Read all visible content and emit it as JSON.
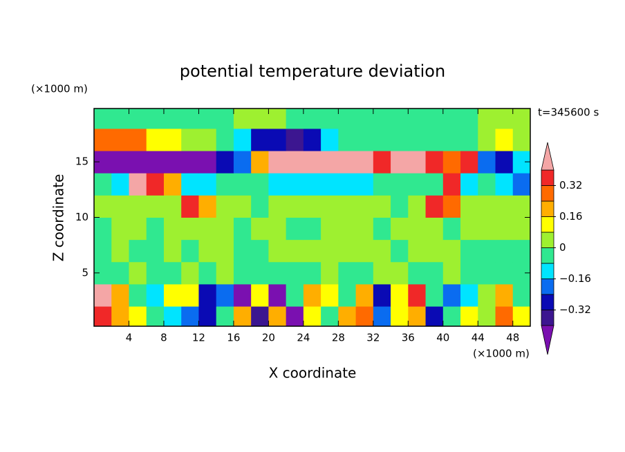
{
  "chart_data": {
    "type": "contour",
    "title": "potential temperature deviation",
    "x_label": "X coordinate",
    "y_label": "Z coordinate",
    "x_unit": "(×1000 m)",
    "y_unit": "(×1000 m)",
    "time_label": "t=345600 s",
    "xlim": [
      0,
      50
    ],
    "ylim": [
      0.2,
      19.8
    ],
    "xticks": [
      4,
      8,
      12,
      16,
      20,
      24,
      28,
      32,
      36,
      40,
      44,
      48
    ],
    "yticks": [
      5,
      10,
      15
    ],
    "x": [
      1,
      3,
      5,
      7,
      9,
      11,
      13,
      15,
      17,
      19,
      21,
      23,
      25,
      27,
      29,
      31,
      33,
      35,
      37,
      39,
      41,
      43,
      45,
      47,
      49
    ],
    "z": [
      1,
      3,
      5,
      7,
      9,
      11,
      13,
      15,
      17,
      19
    ],
    "values": [
      [
        0.36,
        0.2,
        0.12,
        -0.04,
        -0.12,
        -0.2,
        -0.28,
        -0.04,
        0.2,
        -0.36,
        0.2,
        -0.44,
        0.12,
        -0.04,
        0.2,
        0.28,
        -0.2,
        0.12,
        0.2,
        -0.28,
        -0.04,
        0.12,
        0.04,
        0.28,
        0.12
      ],
      [
        0.44,
        0.2,
        -0.04,
        -0.12,
        0.12,
        0.12,
        -0.28,
        -0.2,
        -0.44,
        0.12,
        -0.44,
        -0.04,
        0.2,
        0.12,
        -0.04,
        0.2,
        -0.28,
        0.12,
        0.36,
        -0.04,
        -0.2,
        -0.12,
        0.04,
        0.2,
        -0.04
      ],
      [
        -0.04,
        -0.04,
        0.04,
        -0.04,
        -0.04,
        0.04,
        -0.04,
        0.04,
        -0.04,
        -0.04,
        -0.04,
        -0.04,
        -0.04,
        0.04,
        -0.04,
        -0.04,
        0.04,
        0.04,
        -0.04,
        -0.04,
        0.04,
        -0.04,
        -0.04,
        -0.04,
        -0.04
      ],
      [
        -0.04,
        0.04,
        -0.04,
        -0.04,
        0.04,
        -0.04,
        0.04,
        0.04,
        -0.04,
        -0.04,
        0.04,
        0.04,
        0.04,
        0.04,
        0.04,
        0.04,
        0.04,
        -0.04,
        0.04,
        0.04,
        0.04,
        -0.04,
        -0.04,
        -0.04,
        -0.04
      ],
      [
        -0.04,
        0.04,
        0.04,
        -0.04,
        0.04,
        0.04,
        0.04,
        0.04,
        -0.04,
        0.04,
        0.04,
        -0.04,
        -0.04,
        0.04,
        0.04,
        0.04,
        -0.04,
        0.04,
        0.04,
        0.04,
        -0.04,
        0.04,
        0.04,
        0.04,
        0.04
      ],
      [
        0.04,
        0.04,
        0.04,
        0.04,
        0.04,
        0.36,
        0.2,
        0.04,
        0.04,
        -0.04,
        0.04,
        0.04,
        0.04,
        0.04,
        0.04,
        0.04,
        0.04,
        -0.04,
        0.04,
        0.36,
        0.28,
        0.04,
        0.04,
        0.04,
        0.04
      ],
      [
        -0.04,
        -0.12,
        0.44,
        0.36,
        0.2,
        -0.12,
        -0.12,
        -0.04,
        -0.04,
        -0.04,
        -0.12,
        -0.12,
        -0.12,
        -0.12,
        -0.12,
        -0.12,
        -0.04,
        -0.04,
        -0.04,
        -0.04,
        0.36,
        -0.12,
        -0.04,
        -0.12,
        -0.2
      ],
      [
        -0.44,
        -0.44,
        -0.44,
        -0.44,
        -0.44,
        -0.44,
        -0.44,
        -0.28,
        -0.2,
        0.2,
        0.44,
        0.44,
        0.44,
        0.44,
        0.44,
        0.44,
        0.36,
        0.44,
        0.44,
        0.36,
        0.28,
        0.36,
        -0.2,
        -0.28,
        -0.12
      ],
      [
        0.28,
        0.28,
        0.28,
        0.12,
        0.12,
        0.04,
        0.04,
        -0.04,
        -0.12,
        -0.28,
        -0.28,
        -0.36,
        -0.28,
        -0.12,
        -0.04,
        -0.04,
        -0.04,
        -0.04,
        -0.04,
        -0.04,
        -0.04,
        -0.04,
        0.04,
        0.12,
        0.04
      ],
      [
        -0.04,
        -0.04,
        -0.04,
        -0.04,
        -0.04,
        -0.04,
        -0.04,
        -0.04,
        0.04,
        0.04,
        0.04,
        -0.04,
        -0.04,
        -0.04,
        -0.04,
        -0.04,
        -0.04,
        -0.04,
        -0.04,
        -0.04,
        -0.04,
        -0.04,
        0.04,
        0.04,
        0.04
      ]
    ],
    "levels": [
      -0.4,
      -0.32,
      -0.24,
      -0.16,
      -0.08,
      0,
      0.08,
      0.16,
      0.24,
      0.32,
      0.4
    ],
    "colors": [
      "#7a10b0",
      "#3c1690",
      "#0a0ab4",
      "#0a6cf0",
      "#00e4ff",
      "#30e890",
      "#9ef030",
      "#ffff00",
      "#ffae00",
      "#ff6a00",
      "#f02828",
      "#f4a6a6"
    ],
    "colorbar_ticks": [
      {
        "value": -0.32,
        "label": "−0.32"
      },
      {
        "value": -0.16,
        "label": "−0.16"
      },
      0,
      0.16,
      0.32
    ]
  }
}
